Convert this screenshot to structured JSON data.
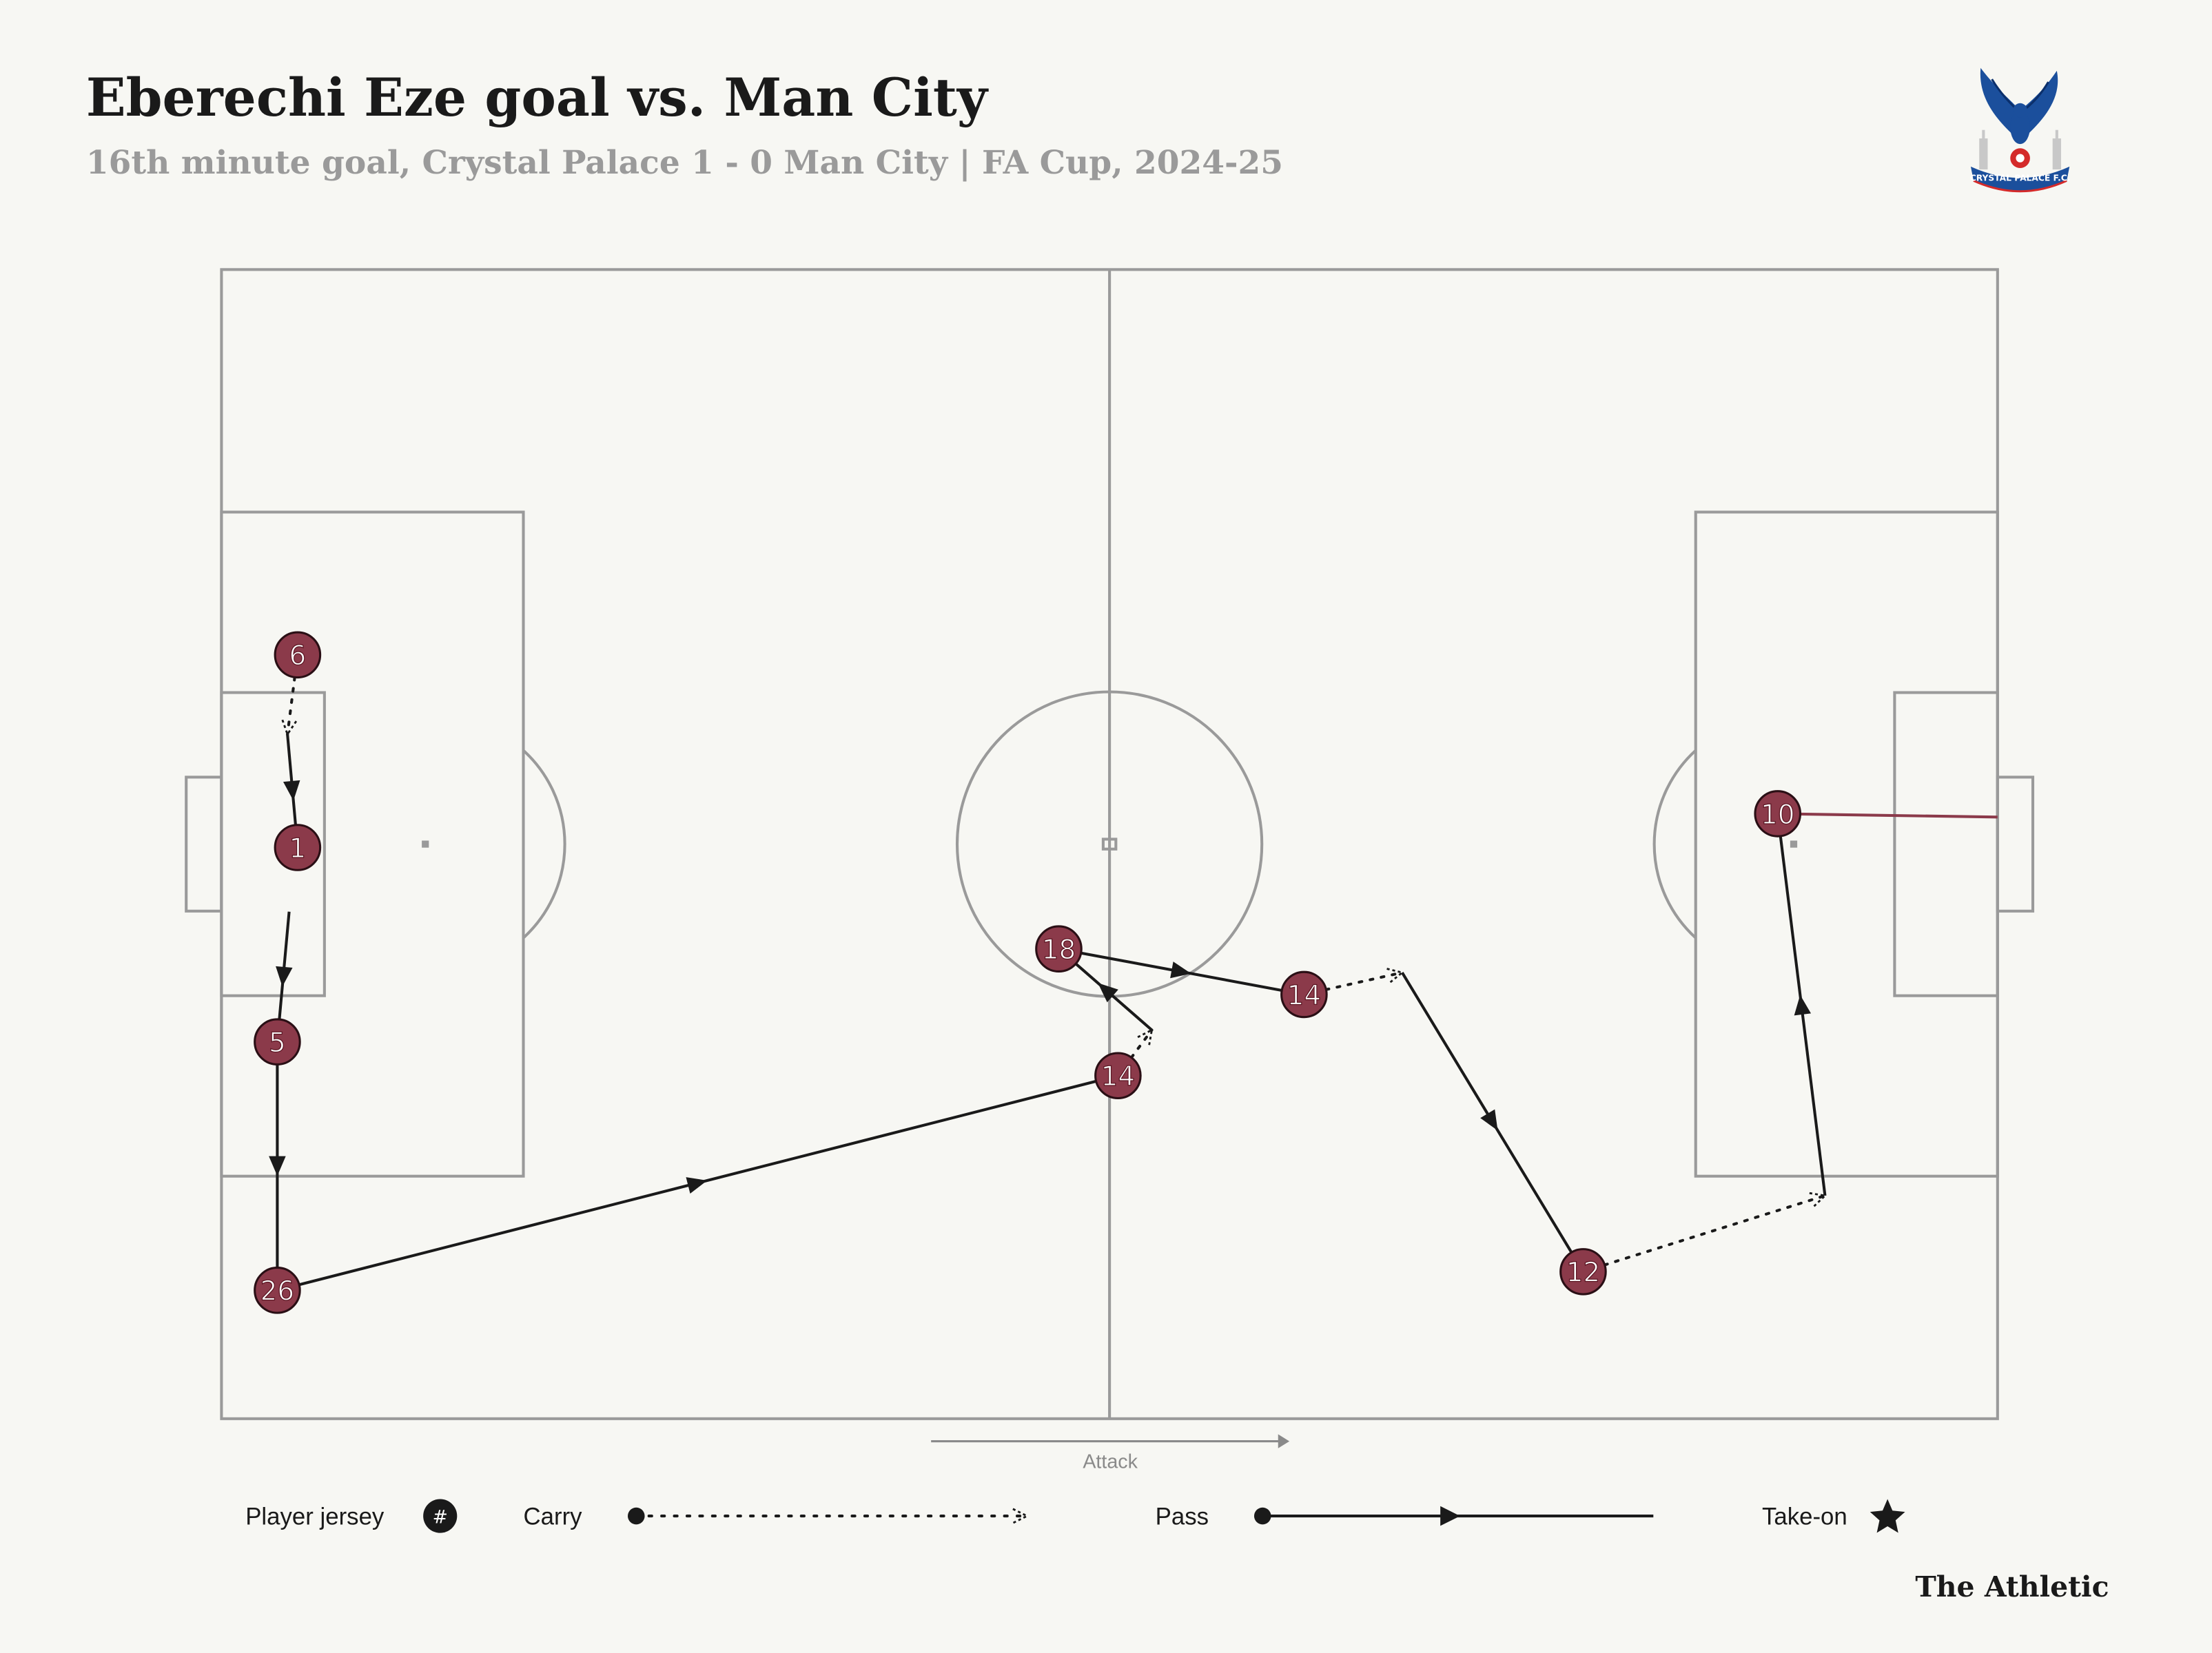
{
  "header": {
    "title": "Eberechi Eze goal vs. Man City",
    "subtitle": "16th minute goal, Crystal Palace 1 - 0 Man City | FA Cup, 2024-25"
  },
  "badge": {
    "text": "CRYSTAL PALACE F.C."
  },
  "attack_label": "Attack",
  "legend": {
    "jersey_label": "Player jersey",
    "jersey_symbol": "#",
    "carry_label": "Carry",
    "pass_label": "Pass",
    "takeon_label": "Take-on"
  },
  "brand": "The Athletic",
  "colors": {
    "background": "#f7f7f3",
    "jersey_fill": "#8b3a4a",
    "shot_line": "#8b3a4a",
    "pitch_line": "#9a9a9a",
    "ink": "#1a1a1a"
  },
  "chart_data": {
    "type": "pass_sequence",
    "pitch": {
      "length": 105,
      "width": 68
    },
    "attack_direction": "left-to-right",
    "players": [
      {
        "jersey": "6",
        "x": 4.5,
        "y": 45.2
      },
      {
        "jersey": "1",
        "x": 4.5,
        "y": 33.8
      },
      {
        "jersey": "5",
        "x": 3.3,
        "y": 22.3
      },
      {
        "jersey": "26",
        "x": 3.3,
        "y": 7.6
      },
      {
        "jersey": "14",
        "x": 53.0,
        "y": 20.3
      },
      {
        "jersey": "18",
        "x": 49.5,
        "y": 27.8
      },
      {
        "jersey": "14",
        "x": 64.0,
        "y": 25.1
      },
      {
        "jersey": "12",
        "x": 80.5,
        "y": 8.7
      },
      {
        "jersey": "10",
        "x": 92.0,
        "y": 35.8
      }
    ],
    "events": [
      {
        "type": "carry",
        "from": [
          4.5,
          45.2
        ],
        "to": [
          3.9,
          40.5
        ]
      },
      {
        "type": "pass",
        "from": [
          3.9,
          40.5
        ],
        "to": [
          4.5,
          33.8
        ]
      },
      {
        "type": "pass",
        "from": [
          4.0,
          30.0
        ],
        "to": [
          3.3,
          22.3
        ]
      },
      {
        "type": "pass",
        "from": [
          3.3,
          22.3
        ],
        "to": [
          3.3,
          7.6
        ]
      },
      {
        "type": "pass",
        "from": [
          3.3,
          7.6
        ],
        "to": [
          53.0,
          20.3
        ]
      },
      {
        "type": "carry",
        "from": [
          53.0,
          20.3
        ],
        "to": [
          55.0,
          23.0
        ]
      },
      {
        "type": "pass",
        "from": [
          55.0,
          23.0
        ],
        "to": [
          49.5,
          27.8
        ]
      },
      {
        "type": "pass",
        "from": [
          49.5,
          27.8
        ],
        "to": [
          64.0,
          25.1
        ]
      },
      {
        "type": "carry",
        "from": [
          64.0,
          25.1
        ],
        "to": [
          69.8,
          26.4
        ]
      },
      {
        "type": "pass",
        "from": [
          69.8,
          26.4
        ],
        "to": [
          80.5,
          8.7
        ]
      },
      {
        "type": "carry",
        "from": [
          80.5,
          8.7
        ],
        "to": [
          94.8,
          13.2
        ]
      },
      {
        "type": "pass",
        "from": [
          94.8,
          13.2
        ],
        "to": [
          92.0,
          35.8
        ]
      },
      {
        "type": "shot",
        "from": [
          92.0,
          35.8
        ],
        "to": [
          105.0,
          35.6
        ]
      }
    ]
  }
}
